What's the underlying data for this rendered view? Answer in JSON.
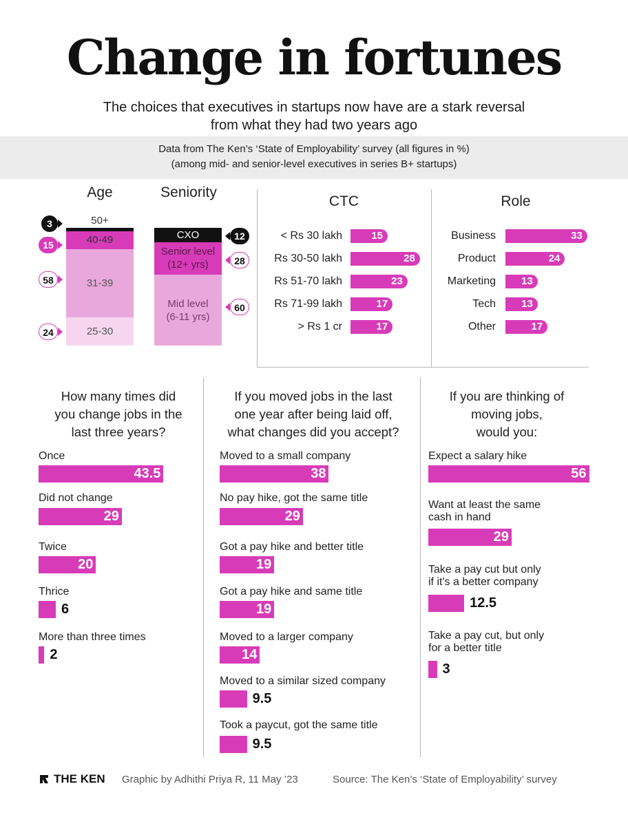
{
  "title": "Change in fortunes",
  "subtitle_line1": "The choices that executives in startups now have are a stark reversal",
  "subtitle_line2": "from what they had two years ago",
  "band_line1": "Data from The Ken’s ‘State of Employability’ survey (all figures in %)",
  "band_line2": "(among mid- and senior-level executives in series B+ startups)",
  "colors": {
    "accent": "#d83bb8",
    "light": "#e8a8db",
    "lighter": "#f6d6ee",
    "black": "#111111"
  },
  "footer": {
    "logo": "THE KEN",
    "credit": "Graphic by Adhithi Priya R, 11 May ’23",
    "source": "Source: The Ken’s ‘State of Employability’ survey"
  },
  "chart_data": [
    {
      "type": "bar",
      "title": "Age",
      "stacked": true,
      "categories": [
        "50+",
        "40-49",
        "31-39",
        "25-30"
      ],
      "values": [
        3,
        15,
        58,
        24
      ]
    },
    {
      "type": "bar",
      "title": "Seniority",
      "stacked": true,
      "categories": [
        "CXO",
        "Senior level (12+ yrs)",
        "Mid level (6-11 yrs)"
      ],
      "labels": [
        [
          "CXO"
        ],
        [
          "Senior level",
          "(12+ yrs)"
        ],
        [
          "Mid level",
          "(6-11 yrs)"
        ]
      ],
      "values": [
        12,
        28,
        60
      ]
    },
    {
      "type": "bar",
      "title": "CTC",
      "categories": [
        "< Rs 30 lakh",
        "Rs 30-50 lakh",
        "Rs 51-70 lakh",
        "Rs 71-99 lakh",
        "> Rs 1 cr"
      ],
      "values": [
        15,
        28,
        23,
        17,
        17
      ]
    },
    {
      "type": "bar",
      "title": "Role",
      "categories": [
        "Business",
        "Product",
        "Marketing",
        "Tech",
        "Other"
      ],
      "values": [
        33,
        24,
        13,
        13,
        17
      ]
    },
    {
      "type": "bar",
      "title": "How many times did you change jobs in the last three years?",
      "title_lines": [
        "How many times did",
        "you change jobs in the",
        "last three years?"
      ],
      "categories": [
        "Once",
        "Did not change",
        "Twice",
        "Thrice",
        "More than three times"
      ],
      "values": [
        43.5,
        29,
        20,
        6,
        2
      ]
    },
    {
      "type": "bar",
      "title": "If you moved jobs in the last one year after being laid off, what changes did you accept?",
      "title_lines": [
        "If you moved jobs in the last",
        "one year after being laid off,",
        "what changes did you accept?"
      ],
      "categories": [
        "Moved to a small company",
        "No pay hike, got the same title",
        "Got a pay hike and better title",
        "Got a pay hike and same title",
        "Moved to a larger company",
        "Moved to a similar sized company",
        "Took a paycut, got the same title"
      ],
      "values": [
        38,
        29,
        19,
        19,
        14,
        9.5,
        9.5
      ]
    },
    {
      "type": "bar",
      "title": "If you are thinking of moving jobs, would you:",
      "title_lines": [
        "If you are thinking of",
        "moving jobs,",
        "would you:"
      ],
      "categories": [
        "Expect a salary hike",
        "Want at least the same cash in hand",
        "Take a pay cut but only if it's a better company",
        "Take a pay cut, but only for a better title"
      ],
      "label_lines": [
        [
          "Expect a salary hike"
        ],
        [
          "Want at least the same",
          "cash in hand"
        ],
        [
          "Take a pay cut but only",
          "if it's a better company"
        ],
        [
          "Take a pay cut, but only",
          "for a better title"
        ]
      ],
      "values": [
        56,
        29,
        12.5,
        3
      ]
    }
  ]
}
